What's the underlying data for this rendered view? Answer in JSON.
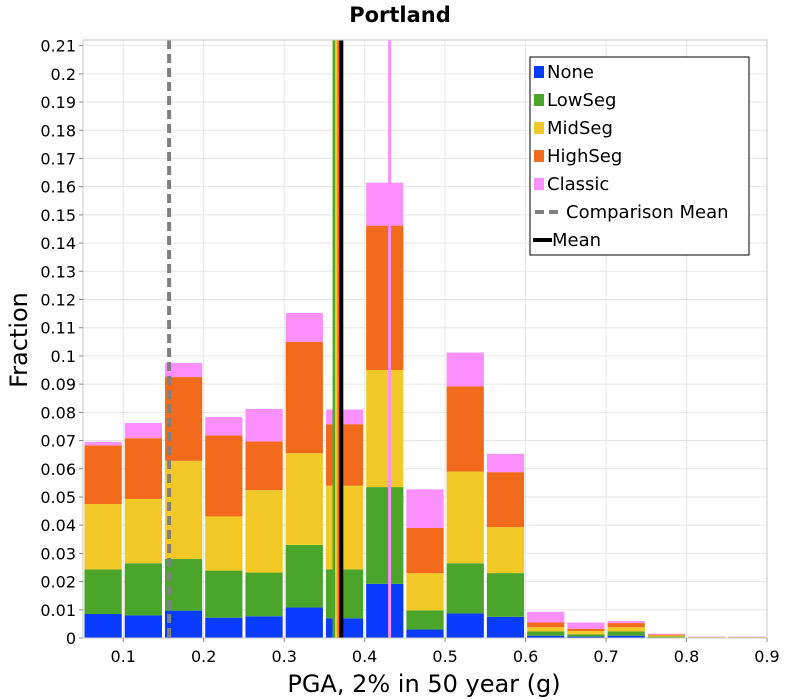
{
  "chart_data": {
    "type": "bar",
    "stacked": true,
    "title": "Portland",
    "xlabel": "PGA, 2% in 50 year (g)",
    "ylabel": "Fraction",
    "xlim": [
      0.05,
      0.9
    ],
    "ylim": [
      0,
      0.212
    ],
    "x_ticks": [
      "0.1",
      "0.2",
      "0.3",
      "0.4",
      "0.5",
      "0.6",
      "0.7",
      "0.8",
      "0.9"
    ],
    "y_ticks": [
      "0",
      "0.01",
      "0.02",
      "0.03",
      "0.04",
      "0.05",
      "0.06",
      "0.07",
      "0.08",
      "0.09",
      "0.1",
      "0.11",
      "0.12",
      "0.13",
      "0.14",
      "0.15",
      "0.16",
      "0.17",
      "0.18",
      "0.19",
      "0.2",
      "0.21"
    ],
    "grid": true,
    "legend_position": "top-right",
    "bin_width": 0.05,
    "x": [
      0.075,
      0.125,
      0.175,
      0.225,
      0.275,
      0.325,
      0.375,
      0.425,
      0.475,
      0.525,
      0.575,
      0.625,
      0.675,
      0.725,
      0.775,
      0.825,
      0.875
    ],
    "series": [
      {
        "name": "None",
        "color": "#0a3cff",
        "values": [
          0.0085,
          0.008,
          0.0097,
          0.0072,
          0.0077,
          0.0108,
          0.007,
          0.0192,
          0.003,
          0.0087,
          0.0075,
          0.0008,
          0.0005,
          0.0008,
          0.0002,
          0.0001,
          0.0001
        ]
      },
      {
        "name": "LowSeg",
        "color": "#4aa52a",
        "values": [
          0.0158,
          0.0185,
          0.0183,
          0.0167,
          0.0155,
          0.0222,
          0.0173,
          0.0343,
          0.0068,
          0.0178,
          0.0155,
          0.0015,
          0.0008,
          0.0015,
          0.0003,
          0.0001,
          0.0001
        ]
      },
      {
        "name": "MidSeg",
        "color": "#f3c927",
        "values": [
          0.0232,
          0.0228,
          0.0348,
          0.0192,
          0.0292,
          0.0325,
          0.0297,
          0.0415,
          0.0132,
          0.0325,
          0.0163,
          0.0015,
          0.0012,
          0.0015,
          0.0004,
          0.0001,
          0.0001
        ]
      },
      {
        "name": "HighSeg",
        "color": "#f26b1c",
        "values": [
          0.0208,
          0.0215,
          0.0297,
          0.0287,
          0.0173,
          0.0395,
          0.0218,
          0.0512,
          0.016,
          0.0302,
          0.0195,
          0.0017,
          0.0008,
          0.0015,
          0.0003,
          0.0001,
          0.0001
        ]
      },
      {
        "name": "Classic",
        "color": "#fb8ffb",
        "values": [
          0.0012,
          0.0054,
          0.005,
          0.0065,
          0.0115,
          0.0102,
          0.0052,
          0.0152,
          0.0137,
          0.012,
          0.0065,
          0.0038,
          0.0022,
          0.0007,
          0.0003,
          0.0001,
          0.0001
        ]
      }
    ],
    "vertical_lines": [
      {
        "x": 0.157,
        "color": "#808080",
        "dashed": true,
        "width": 4
      },
      {
        "x": 0.362,
        "color": "#4aa52a",
        "dashed": false,
        "width": 3
      },
      {
        "x": 0.365,
        "color": "#f3c927",
        "dashed": false,
        "width": 3
      },
      {
        "x": 0.368,
        "color": "#f26b1c",
        "dashed": false,
        "width": 3
      },
      {
        "x": 0.371,
        "color": "#000000",
        "dashed": false,
        "width": 4
      },
      {
        "x": 0.431,
        "color": "#fb8ffb",
        "dashed": false,
        "width": 3
      }
    ],
    "legend": [
      {
        "label": "None",
        "color": "#0a3cff",
        "kind": "box"
      },
      {
        "label": "LowSeg",
        "color": "#4aa52a",
        "kind": "box"
      },
      {
        "label": "MidSeg",
        "color": "#f3c927",
        "kind": "box"
      },
      {
        "label": "HighSeg",
        "color": "#f26b1c",
        "kind": "box"
      },
      {
        "label": "Classic",
        "color": "#fb8ffb",
        "kind": "box"
      },
      {
        "label": "Comparison Mean",
        "color": "#808080",
        "kind": "dashed"
      },
      {
        "label": "Mean",
        "color": "#000000",
        "kind": "solid"
      }
    ]
  }
}
